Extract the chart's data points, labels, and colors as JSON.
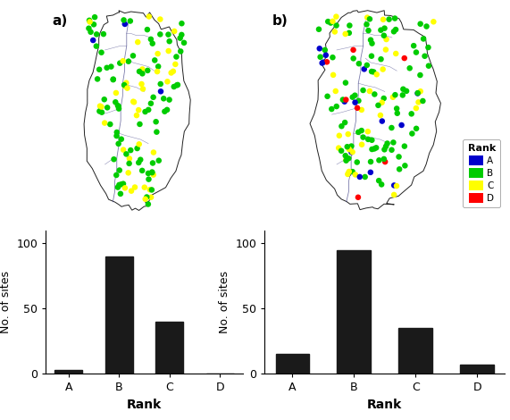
{
  "panel_a_label": "a)",
  "panel_b_label": "b)",
  "ranks": [
    "A",
    "B",
    "C",
    "D"
  ],
  "bar_values_a": [
    3,
    90,
    40,
    0
  ],
  "bar_values_b": [
    15,
    95,
    35,
    7
  ],
  "bar_color": "#1a1a1a",
  "ylabel": "No. of sites",
  "xlabel": "Rank",
  "yticks": [
    0,
    50,
    100
  ],
  "ylim": [
    0,
    110
  ],
  "rank_colors": {
    "A": "#0000cc",
    "B": "#00cc00",
    "C": "#ffff00",
    "D": "#ff0000"
  },
  "legend_title": "Rank",
  "map_bg_color": "#ffffff",
  "figure_bg": "#ffffff",
  "map_outline_color": "#222222",
  "sites_a": {
    "A": 3,
    "B": 90,
    "C": 40,
    "D": 0
  },
  "sites_b": {
    "A": 15,
    "B": 95,
    "C": 35,
    "D": 7
  }
}
